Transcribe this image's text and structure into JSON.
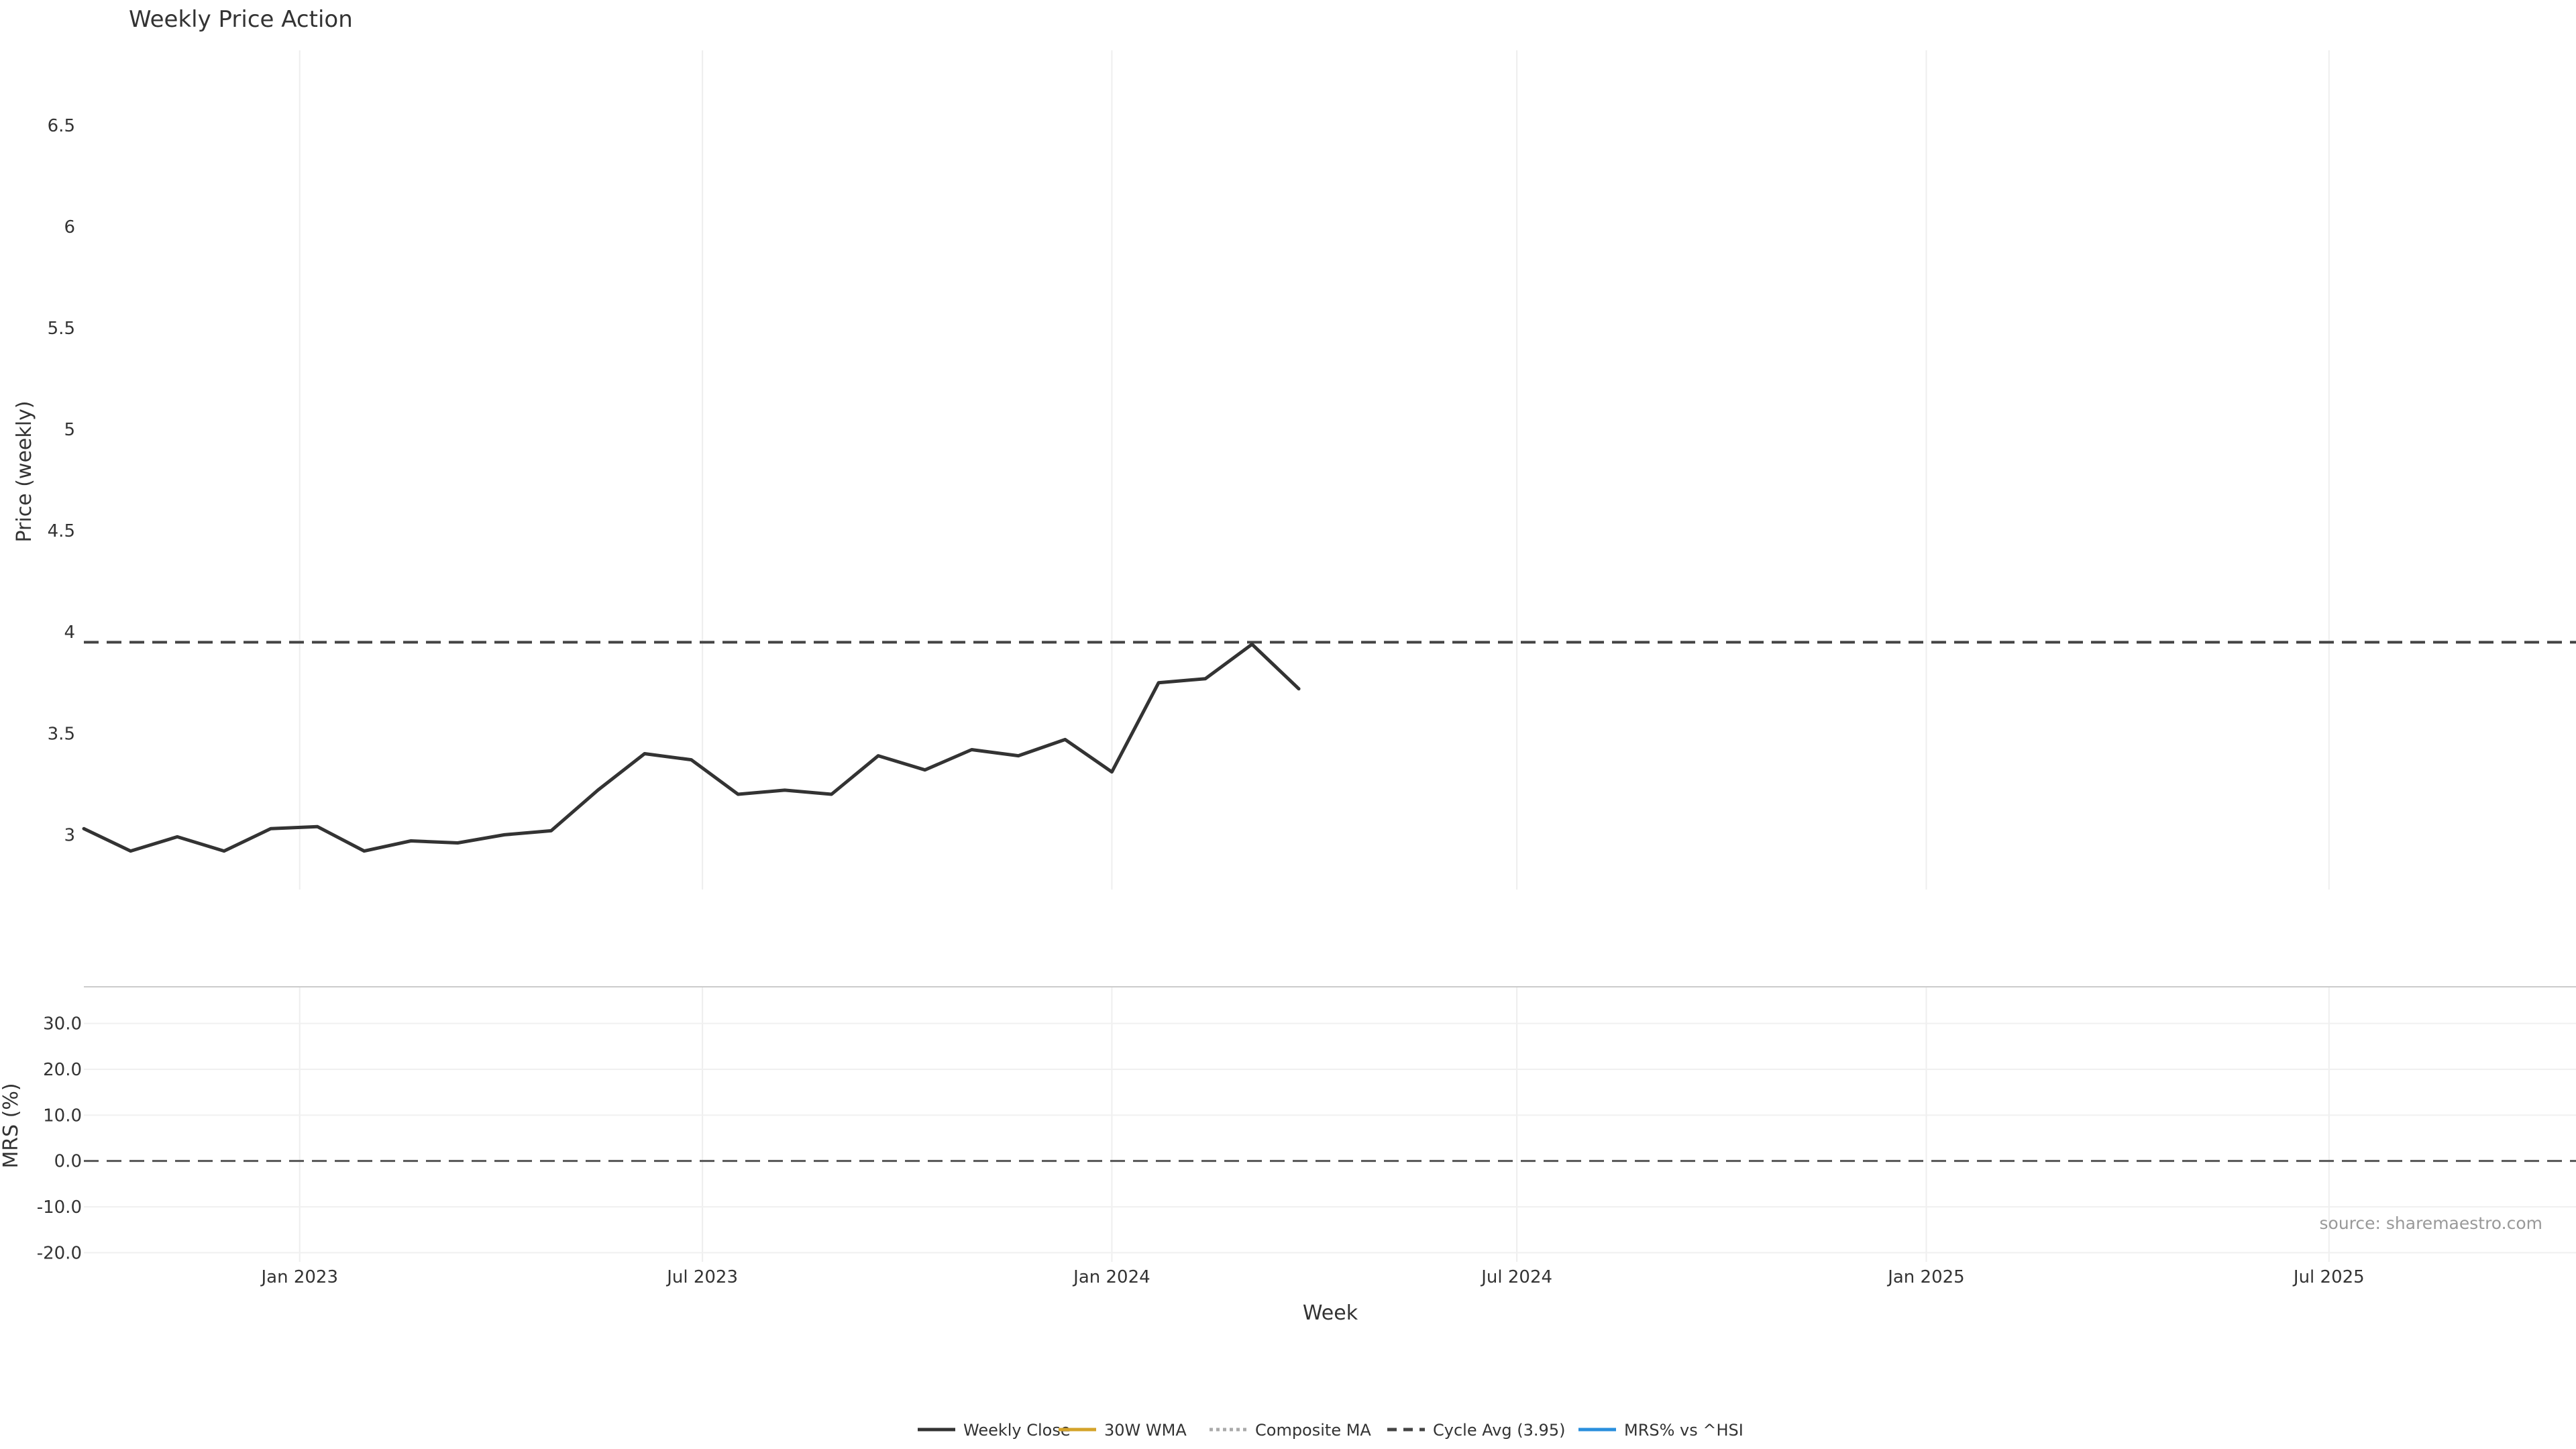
{
  "chart_data": {
    "type": "line",
    "title": "Weekly Price Action",
    "source": "source: sharemaestro.com",
    "xlabel": "Week",
    "x_range": [
      "2022-09-26",
      "2025-10-20"
    ],
    "x_ticks": [
      {
        "date": "2023-01-01",
        "label": "Jan 2023"
      },
      {
        "date": "2023-07-01",
        "label": "Jul 2023"
      },
      {
        "date": "2024-01-01",
        "label": "Jan 2024"
      },
      {
        "date": "2024-07-01",
        "label": "Jul 2024"
      },
      {
        "date": "2025-01-01",
        "label": "Jan 2025"
      },
      {
        "date": "2025-07-01",
        "label": "Jul 2025"
      }
    ],
    "price_panel": {
      "ylabel": "Price (weekly)",
      "ylim": [
        2.73,
        6.87
      ],
      "y_ticks": [
        {
          "value": 3,
          "label": "3"
        },
        {
          "value": 3.5,
          "label": "3.5"
        },
        {
          "value": 4,
          "label": "4"
        },
        {
          "value": 4.5,
          "label": "4.5"
        },
        {
          "value": 5,
          "label": "5"
        },
        {
          "value": 5.5,
          "label": "5.5"
        },
        {
          "value": 6,
          "label": "6"
        },
        {
          "value": 6.5,
          "label": "6.5"
        }
      ],
      "cycle_avg": 3.95,
      "series": [
        {
          "name": "Weekly Close",
          "color": "#333333",
          "style": "solid",
          "points": [
            [
              "2022-09-26",
              3.03
            ],
            [
              "2022-10-17",
              2.92
            ],
            [
              "2022-11-07",
              2.99
            ],
            [
              "2022-11-28",
              2.92
            ],
            [
              "2022-12-19",
              3.03
            ],
            [
              "2023-01-09",
              3.04
            ],
            [
              "2023-01-30",
              2.92
            ],
            [
              "2023-02-20",
              2.97
            ],
            [
              "2023-03-13",
              2.96
            ],
            [
              "2023-04-03",
              3.0
            ],
            [
              "2023-04-24",
              3.02
            ],
            [
              "2023-05-15",
              3.22
            ],
            [
              "2023-06-05",
              3.4
            ],
            [
              "2023-06-26",
              3.37
            ],
            [
              "2023-07-17",
              3.2
            ],
            [
              "2023-08-07",
              3.22
            ],
            [
              "2023-08-28",
              3.2
            ],
            [
              "2023-09-18",
              3.39
            ],
            [
              "2023-10-09",
              3.32
            ],
            [
              "2023-10-30",
              3.42
            ],
            [
              "2023-11-20",
              3.39
            ],
            [
              "2023-12-11",
              3.47
            ],
            [
              "2024-01-01",
              3.31
            ],
            [
              "2024-01-22",
              3.75
            ],
            [
              "2024-02-12",
              3.77
            ],
            [
              "2024-03-04",
              3.94
            ],
            [
              "2024-03-25",
              3.72
            ]
          ]
        }
      ]
    },
    "mrs_panel": {
      "ylabel": "MRS (%)",
      "ylim": [
        -22,
        38
      ],
      "y_ticks": [
        {
          "value": -20,
          "label": "-20.0"
        },
        {
          "value": -10,
          "label": "-10.0"
        },
        {
          "value": 0,
          "label": "0.0"
        },
        {
          "value": 10,
          "label": "10.0"
        },
        {
          "value": 20,
          "label": "20.0"
        },
        {
          "value": 30,
          "label": "30.0"
        }
      ],
      "series": {
        "name": "MRS% vs ^HSI",
        "color": "#2a8fdd",
        "points": []
      }
    },
    "signals": [],
    "legend": {
      "placement": "bottom-center",
      "entries": [
        {
          "label": "Weekly Close",
          "color": "#333333",
          "style": "solid"
        },
        {
          "label": "30W WMA",
          "color": "#d4a32a",
          "style": "solid"
        },
        {
          "label": "Composite MA",
          "color": "#aaaaaa",
          "style": "dotted"
        },
        {
          "label": "Cycle Avg (3.95)",
          "color": "#444444",
          "style": "dashed"
        },
        {
          "label": "MRS% vs ^HSI",
          "color": "#2a8fdd",
          "style": "solid"
        }
      ]
    }
  }
}
